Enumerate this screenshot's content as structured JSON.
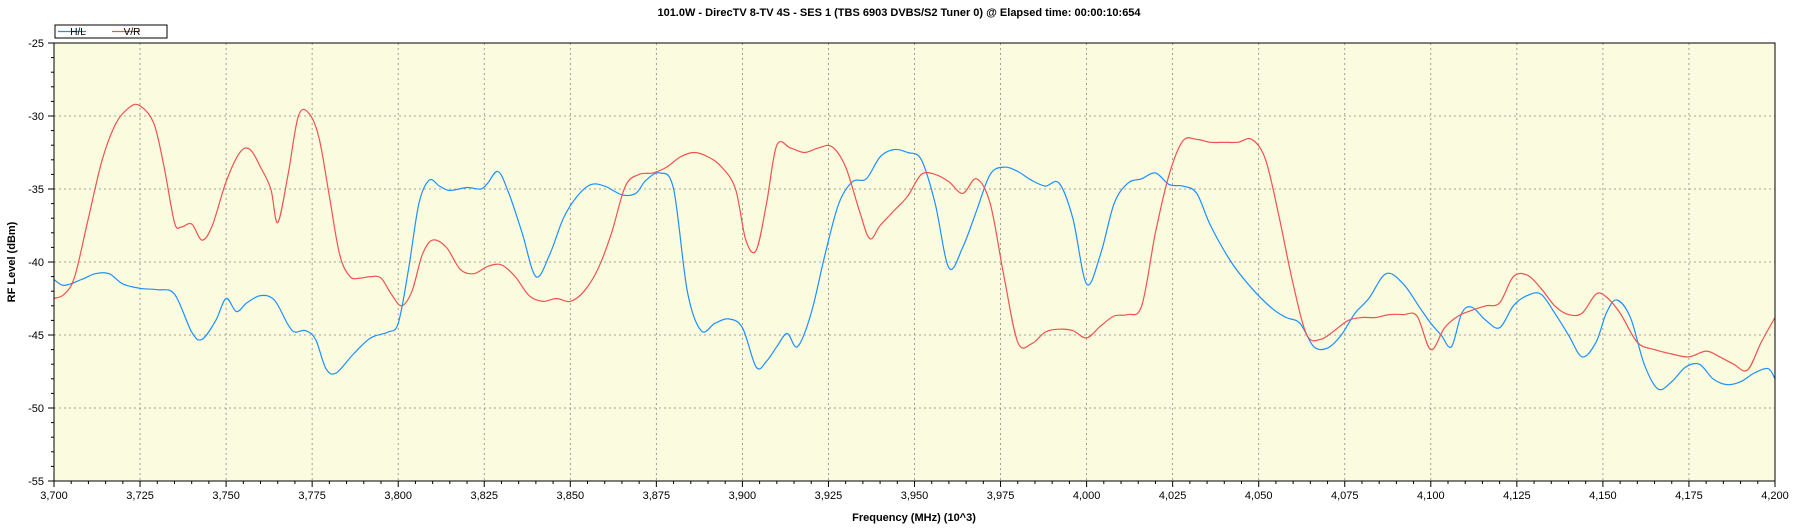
{
  "chart_data": {
    "type": "line",
    "title": "101.0W - DirecTV 8-TV 4S - SES 1 (TBS 6903 DVBS/S2 Tuner 0) @ Elapsed time: 00:00:10:654",
    "xlabel": "Frequency (MHz) (10^3)",
    "ylabel": "RF Level (dBm)",
    "xlim": [
      3.7,
      4.2
    ],
    "ylim": [
      -55,
      -25
    ],
    "x_ticks": [
      3.7,
      3.725,
      3.75,
      3.775,
      3.8,
      3.825,
      3.85,
      3.875,
      3.9,
      3.925,
      3.95,
      3.975,
      4.0,
      4.025,
      4.05,
      4.075,
      4.1,
      4.125,
      4.15,
      4.175,
      4.2
    ],
    "x_tick_labels": [
      "3,700",
      "3,725",
      "3,750",
      "3,775",
      "3,800",
      "3,825",
      "3,850",
      "3,875",
      "3,900",
      "3,925",
      "3,950",
      "3,975",
      "4,000",
      "4,025",
      "4,050",
      "4,075",
      "4,100",
      "4,125",
      "4,150",
      "4,175",
      "4,200"
    ],
    "y_ticks": [
      -25,
      -30,
      -35,
      -40,
      -45,
      -50,
      -55
    ],
    "y_tick_labels": [
      "-25",
      "-30",
      "-35",
      "-40",
      "-45",
      "-50",
      "-55"
    ],
    "grid": true,
    "legend_position": "top-left",
    "background_color": "#fbfbdf",
    "series": [
      {
        "name": "H/L",
        "color": "#1e90ff",
        "x": [
          3.7,
          3.703,
          3.708,
          3.712,
          3.716,
          3.72,
          3.725,
          3.73,
          3.735,
          3.74,
          3.743,
          3.747,
          3.75,
          3.753,
          3.756,
          3.76,
          3.764,
          3.768,
          3.77,
          3.773,
          3.776,
          3.779,
          3.782,
          3.787,
          3.792,
          3.797,
          3.8,
          3.803,
          3.806,
          3.809,
          3.812,
          3.815,
          3.82,
          3.824,
          3.826,
          3.829,
          3.832,
          3.836,
          3.84,
          3.844,
          3.848,
          3.852,
          3.856,
          3.86,
          3.865,
          3.869,
          3.872,
          3.876,
          3.88,
          3.884,
          3.888,
          3.892,
          3.896,
          3.9,
          3.904,
          3.907,
          3.91,
          3.913,
          3.916,
          3.92,
          3.924,
          3.928,
          3.932,
          3.936,
          3.94,
          3.944,
          3.948,
          3.952,
          3.956,
          3.96,
          3.964,
          3.968,
          3.972,
          3.976,
          3.98,
          3.984,
          3.988,
          3.992,
          3.996,
          4.0,
          4.004,
          4.008,
          4.012,
          4.016,
          4.02,
          4.024,
          4.028,
          4.032,
          4.036,
          4.042,
          4.048,
          4.054,
          4.058,
          4.062,
          4.066,
          4.07,
          4.074,
          4.078,
          4.082,
          4.087,
          4.092,
          4.097,
          4.1,
          4.103,
          4.106,
          4.109,
          4.112,
          4.116,
          4.12,
          4.124,
          4.128,
          4.132,
          4.136,
          4.14,
          4.144,
          4.148,
          4.151,
          4.154,
          4.158,
          4.162,
          4.166,
          4.17,
          4.174,
          4.178,
          4.182,
          4.186,
          4.19,
          4.194,
          4.198,
          4.2
        ],
        "y": [
          -41.2,
          -41.6,
          -41.2,
          -40.8,
          -40.8,
          -41.5,
          -41.8,
          -41.9,
          -42.2,
          -44.8,
          -45.3,
          -44.0,
          -42.5,
          -43.4,
          -42.8,
          -42.3,
          -42.6,
          -44.3,
          -44.8,
          -44.7,
          -45.3,
          -47.3,
          -47.6,
          -46.3,
          -45.2,
          -44.8,
          -44.2,
          -40.5,
          -36.0,
          -34.4,
          -34.8,
          -35.1,
          -34.9,
          -35.0,
          -34.6,
          -33.8,
          -35.2,
          -38.0,
          -41.0,
          -39.5,
          -37.0,
          -35.5,
          -34.7,
          -34.8,
          -35.4,
          -35.3,
          -34.4,
          -33.9,
          -35.0,
          -42.0,
          -44.7,
          -44.2,
          -43.9,
          -44.5,
          -47.2,
          -46.8,
          -45.8,
          -44.9,
          -45.8,
          -43.5,
          -39.5,
          -36.0,
          -34.5,
          -34.3,
          -32.8,
          -32.3,
          -32.5,
          -33.0,
          -36.0,
          -40.4,
          -39.0,
          -36.5,
          -34.0,
          -33.5,
          -33.8,
          -34.4,
          -34.8,
          -34.6,
          -37.0,
          -41.5,
          -39.5,
          -36.0,
          -34.6,
          -34.3,
          -33.9,
          -34.7,
          -34.8,
          -35.3,
          -37.5,
          -40.0,
          -41.8,
          -43.2,
          -43.8,
          -44.2,
          -45.8,
          -45.9,
          -45.0,
          -43.5,
          -42.5,
          -40.8,
          -41.5,
          -43.2,
          -44.2,
          -45.0,
          -45.8,
          -43.5,
          -43.1,
          -44.0,
          -44.5,
          -43.0,
          -42.3,
          -42.2,
          -43.5,
          -45.0,
          -46.5,
          -45.5,
          -43.5,
          -42.6,
          -43.8,
          -47.0,
          -48.7,
          -48.2,
          -47.2,
          -47.0,
          -48.0,
          -48.4,
          -48.2,
          -47.6,
          -47.3,
          -48.0
        ]
      },
      {
        "name": "V/R",
        "color": "#ef5350",
        "x": [
          3.7,
          3.703,
          3.706,
          3.71,
          3.714,
          3.718,
          3.722,
          3.725,
          3.729,
          3.732,
          3.735,
          3.737,
          3.74,
          3.743,
          3.746,
          3.75,
          3.754,
          3.757,
          3.76,
          3.763,
          3.765,
          3.768,
          3.771,
          3.774,
          3.777,
          3.78,
          3.783,
          3.786,
          3.789,
          3.792,
          3.795,
          3.798,
          3.801,
          3.804,
          3.807,
          3.81,
          3.814,
          3.818,
          3.822,
          3.826,
          3.83,
          3.834,
          3.838,
          3.842,
          3.846,
          3.85,
          3.854,
          3.858,
          3.862,
          3.866,
          3.87,
          3.874,
          3.878,
          3.882,
          3.886,
          3.89,
          3.894,
          3.898,
          3.901,
          3.904,
          3.907,
          3.91,
          3.914,
          3.918,
          3.922,
          3.926,
          3.93,
          3.934,
          3.937,
          3.94,
          3.944,
          3.948,
          3.952,
          3.956,
          3.96,
          3.964,
          3.968,
          3.972,
          3.976,
          3.98,
          3.984,
          3.988,
          3.992,
          3.996,
          4.0,
          4.004,
          4.008,
          4.012,
          4.016,
          4.02,
          4.024,
          4.028,
          4.032,
          4.036,
          4.04,
          4.044,
          4.048,
          4.052,
          4.056,
          4.06,
          4.064,
          4.068,
          4.072,
          4.076,
          4.08,
          4.084,
          4.088,
          4.092,
          4.096,
          4.1,
          4.104,
          4.108,
          4.112,
          4.116,
          4.12,
          4.124,
          4.128,
          4.132,
          4.136,
          4.14,
          4.144,
          4.148,
          4.151,
          4.155,
          4.16,
          4.165,
          4.17,
          4.175,
          4.18,
          4.184,
          4.188,
          4.192,
          4.196,
          4.2
        ],
        "y": [
          -42.5,
          -42.2,
          -41.0,
          -37.0,
          -33.0,
          -30.5,
          -29.4,
          -29.3,
          -30.5,
          -33.5,
          -37.3,
          -37.6,
          -37.4,
          -38.5,
          -37.5,
          -34.5,
          -32.5,
          -32.3,
          -33.5,
          -35.0,
          -37.3,
          -34.0,
          -30.0,
          -29.8,
          -31.5,
          -35.5,
          -39.5,
          -41.0,
          -41.1,
          -41.0,
          -41.1,
          -42.2,
          -43.0,
          -42.0,
          -39.5,
          -38.5,
          -39.0,
          -40.5,
          -40.8,
          -40.3,
          -40.2,
          -41.0,
          -42.3,
          -42.7,
          -42.5,
          -42.7,
          -42.0,
          -40.5,
          -38.0,
          -34.8,
          -34.0,
          -33.9,
          -33.5,
          -32.8,
          -32.5,
          -32.8,
          -33.5,
          -35.0,
          -38.5,
          -39.2,
          -36.0,
          -32.0,
          -32.2,
          -32.5,
          -32.2,
          -32.1,
          -33.5,
          -36.5,
          -38.4,
          -37.5,
          -36.5,
          -35.5,
          -34.0,
          -34.0,
          -34.5,
          -35.3,
          -34.3,
          -36.0,
          -41.0,
          -45.5,
          -45.6,
          -44.8,
          -44.6,
          -44.7,
          -45.2,
          -44.4,
          -43.7,
          -43.6,
          -43.0,
          -38.0,
          -34.0,
          -31.7,
          -31.6,
          -31.8,
          -31.8,
          -31.8,
          -31.6,
          -33.0,
          -37.0,
          -41.5,
          -45.0,
          -45.3,
          -44.7,
          -44.0,
          -43.8,
          -43.8,
          -43.6,
          -43.6,
          -43.7,
          -46.0,
          -44.5,
          -43.7,
          -43.3,
          -43.0,
          -42.8,
          -41.0,
          -40.9,
          -41.8,
          -43.0,
          -43.6,
          -43.5,
          -42.2,
          -42.4,
          -43.5,
          -45.5,
          -46.0,
          -46.3,
          -46.5,
          -46.1,
          -46.5,
          -47.0,
          -47.4,
          -45.5,
          -43.8
        ]
      }
    ]
  }
}
